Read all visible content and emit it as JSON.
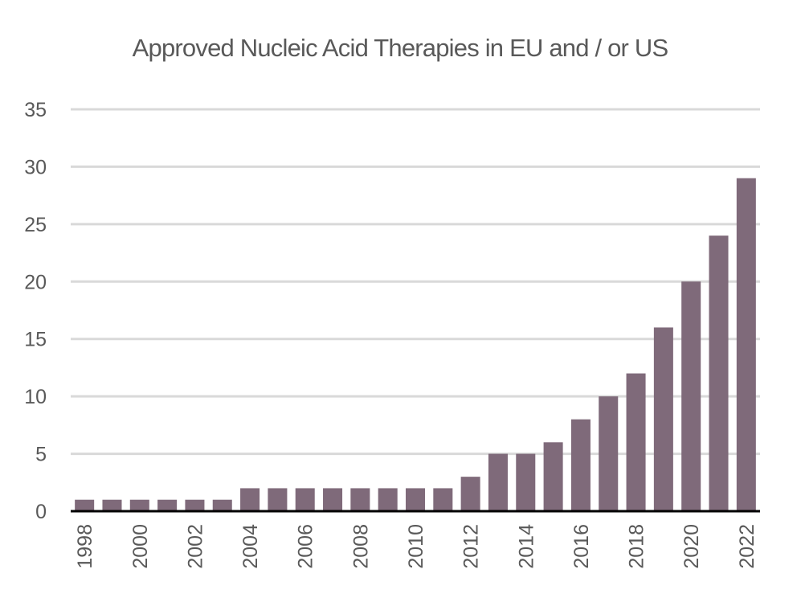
{
  "chart_data": {
    "type": "bar",
    "title": "Approved Nucleic Acid Therapies in EU and / or US",
    "xlabel": "",
    "ylabel": "",
    "categories": [
      "1998",
      "1999",
      "2000",
      "2001",
      "2002",
      "2003",
      "2004",
      "2005",
      "2006",
      "2007",
      "2008",
      "2009",
      "2010",
      "2011",
      "2012",
      "2013",
      "2014",
      "2015",
      "2016",
      "2017",
      "2018",
      "2019",
      "2020",
      "2021",
      "2022"
    ],
    "values": [
      1,
      1,
      1,
      1,
      1,
      1,
      2,
      2,
      2,
      2,
      2,
      2,
      2,
      2,
      3,
      5,
      5,
      6,
      8,
      10,
      12,
      16,
      20,
      24,
      29
    ],
    "x_tick_labels": [
      "1998",
      "2000",
      "2002",
      "2004",
      "2006",
      "2008",
      "2010",
      "2012",
      "2014",
      "2016",
      "2018",
      "2020",
      "2022"
    ],
    "y_ticks": [
      0,
      5,
      10,
      15,
      20,
      25,
      30,
      35
    ],
    "ylim": [
      0,
      35
    ],
    "grid": true,
    "legend": "none",
    "colors": {
      "bar": "#7f6a7a",
      "grid": "#d9d9d9",
      "axis": "#000000",
      "text": "#595959"
    }
  }
}
